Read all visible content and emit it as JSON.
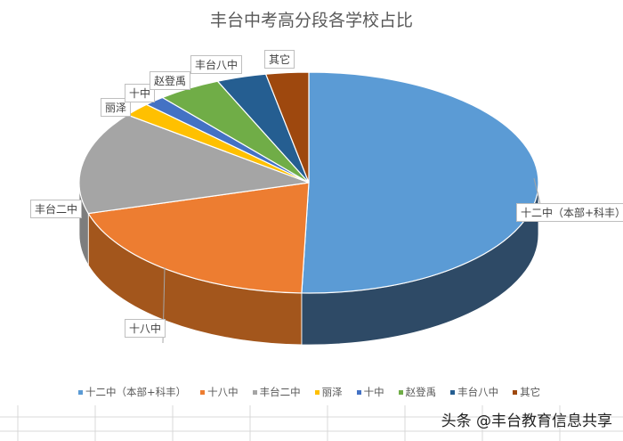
{
  "chart_data": {
    "type": "pie",
    "title": "丰台中考高分段各学校占比",
    "legend_position": "bottom",
    "three_d": true,
    "categories": [
      "十二中（本部+科丰）",
      "十八中",
      "丰台二中",
      "丽泽",
      "十中",
      "赵登禹",
      "丰台八中",
      "其它"
    ],
    "values": [
      50.5,
      20,
      15,
      2,
      1.5,
      4.5,
      3.5,
      3
    ],
    "colors": [
      "#5b9bd5",
      "#ed7d31",
      "#a5a5a5",
      "#ffc000",
      "#4472c4",
      "#70ad47",
      "#255e91",
      "#9e480e"
    ],
    "side_colors": [
      "#2e4a66",
      "#a3561c",
      "#7d7d7d",
      "#b38600",
      "#2f4f8a",
      "#4e7a31",
      "#173d5e",
      "#6b300a"
    ]
  },
  "watermark": "头条 @丰台教育信息共享"
}
